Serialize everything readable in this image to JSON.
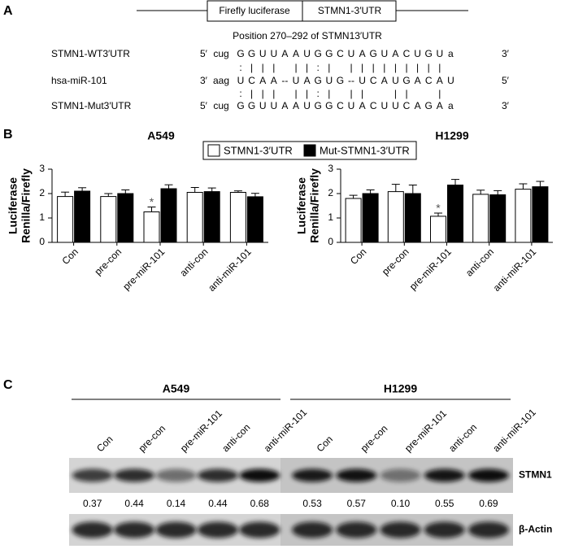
{
  "panel_labels": [
    "A",
    "B",
    "C"
  ],
  "construct": {
    "boxes": [
      "Firefly luciferase",
      "STMN1-3′UTR"
    ],
    "caption": "Position 270–292 of STMN13′UTR"
  },
  "alignment": {
    "rows": [
      {
        "name": "STMN1-WT3′UTR",
        "start": "5′",
        "end": "3′",
        "seq": [
          "cug",
          "G",
          "G",
          "U",
          "U",
          "A",
          "A",
          "U",
          "G",
          "G",
          "C",
          "U",
          "A",
          "G",
          "U",
          "A",
          "C",
          "U",
          "G",
          "U",
          "a"
        ]
      },
      {
        "name": "hsa-miR-101",
        "start": "3′",
        "end": "5′",
        "seq": [
          "aag",
          "U",
          "C",
          "A",
          "A",
          "--",
          "U",
          "A",
          "G",
          "U",
          "G",
          "--",
          "U",
          "C",
          "A",
          "U",
          "G",
          "A",
          "C",
          "A",
          "U",
          null
        ]
      },
      {
        "name": "STMN1-Mut3′UTR",
        "start": "5′",
        "end": "3′",
        "seq": [
          "cug",
          "G",
          "G",
          "U",
          "U",
          "A",
          "A",
          "U",
          "G",
          "G",
          "C",
          "U",
          "A",
          "C",
          "U",
          "U",
          "C",
          "A",
          "G",
          "A",
          "a"
        ]
      }
    ],
    "pairing": [
      [
        null,
        ":",
        "|",
        "|",
        "|",
        null,
        "|",
        "|",
        ":",
        "|",
        null,
        "|",
        "|",
        "|",
        "|",
        "|",
        "|",
        "|",
        "|",
        "|"
      ],
      [
        null,
        ":",
        "|",
        "|",
        "|",
        null,
        "|",
        "|",
        ":",
        "|",
        null,
        "|",
        "|",
        null,
        null,
        "|",
        "|",
        null,
        null,
        "|"
      ]
    ]
  },
  "chart_data": [
    {
      "type": "bar",
      "title": "A549",
      "ylabel": [
        "Luciferase",
        "Renilla/Firefly"
      ],
      "categories": [
        "Con",
        "pre-con",
        "pre-miR-101",
        "anti-con",
        "anti-miR-101"
      ],
      "series": [
        {
          "name": "STMN1-3′UTR",
          "color": "#ffffff",
          "values": [
            1.88,
            1.88,
            1.25,
            2.05,
            2.05
          ],
          "errors": [
            0.18,
            0.12,
            0.2,
            0.2,
            0.06
          ]
        },
        {
          "name": "Mut-STMN1-3′UTR",
          "color": "#000000",
          "values": [
            2.1,
            2.0,
            2.2,
            2.08,
            1.87
          ],
          "errors": [
            0.14,
            0.15,
            0.16,
            0.15,
            0.14
          ]
        }
      ],
      "significance": [
        null,
        null,
        "*",
        null,
        null
      ],
      "ylim": [
        0,
        3
      ],
      "yticks": [
        0,
        1,
        2,
        3
      ]
    },
    {
      "type": "bar",
      "title": "H1299",
      "ylabel": [
        "Luciferase",
        "Renilla/Firefly"
      ],
      "categories": [
        "Con",
        "pre-con",
        "pre-miR-101",
        "anti-con",
        "anti-miR-101"
      ],
      "series": [
        {
          "name": "STMN1-3′UTR",
          "color": "#ffffff",
          "values": [
            1.8,
            2.08,
            1.07,
            1.97,
            2.18
          ],
          "errors": [
            0.13,
            0.3,
            0.13,
            0.17,
            0.22
          ]
        },
        {
          "name": "Mut-STMN1-3′UTR",
          "color": "#000000",
          "values": [
            2.0,
            2.0,
            2.35,
            1.95,
            2.28
          ],
          "errors": [
            0.15,
            0.35,
            0.23,
            0.17,
            0.22
          ]
        }
      ],
      "significance": [
        null,
        null,
        "*",
        null,
        null
      ],
      "ylim": [
        0,
        3
      ],
      "yticks": [
        0,
        1,
        2,
        3
      ]
    }
  ],
  "blot": {
    "groups": [
      {
        "name": "A549",
        "lanes": [
          "Con",
          "pre-con",
          "pre-miR-101",
          "anti-con",
          "anti-miR-101"
        ]
      },
      {
        "name": "H1299",
        "lanes": [
          "Con",
          "pre-con",
          "pre-miR-101",
          "anti-con",
          "anti-miR-101"
        ]
      }
    ],
    "rows": [
      "STMN1",
      "β-Actin"
    ],
    "quantification": [
      "0.37",
      "0.44",
      "0.14",
      "0.44",
      "0.68",
      "0.53",
      "0.57",
      "0.10",
      "0.55",
      "0.69"
    ]
  }
}
